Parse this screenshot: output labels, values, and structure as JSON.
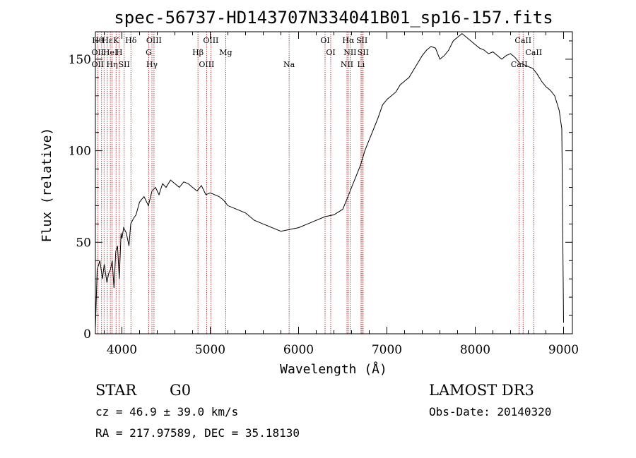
{
  "chart_data": {
    "type": "line",
    "title": "spec-56737-HD143707N334041B01_sp16-157.fits",
    "xlabel": "Wavelength (Å)",
    "ylabel": "Flux (relative)",
    "xlim": [
      3700,
      9100
    ],
    "ylim": [
      0,
      165
    ],
    "xticks": [
      4000,
      5000,
      6000,
      7000,
      8000,
      9000
    ],
    "yticks": [
      0,
      50,
      100,
      150
    ],
    "grid": false,
    "line_color": "#000000",
    "marker_color": "#aa1111",
    "series": [
      {
        "x": [
          3700,
          3720,
          3750,
          3780,
          3800,
          3830,
          3850,
          3870,
          3890,
          3910,
          3930,
          3950,
          3970,
          3990,
          4000,
          4020,
          4050,
          4080,
          4100,
          4130,
          4160,
          4200,
          4250,
          4300,
          4340,
          4380,
          4420,
          4460,
          4500,
          4550,
          4600,
          4650,
          4700,
          4750,
          4800,
          4850,
          4900,
          4950,
          5000,
          5050,
          5100,
          5150,
          5200,
          5300,
          5400,
          5500,
          5600,
          5700,
          5800,
          5900,
          6000,
          6100,
          6200,
          6300,
          6400,
          6500,
          6560,
          6600,
          6650,
          6700,
          6750,
          6800,
          6850,
          6900,
          6950,
          7000,
          7050,
          7100,
          7150,
          7200,
          7250,
          7300,
          7350,
          7400,
          7450,
          7500,
          7550,
          7600,
          7650,
          7700,
          7750,
          7800,
          7850,
          7900,
          7950,
          8000,
          8050,
          8100,
          8150,
          8200,
          8250,
          8300,
          8350,
          8400,
          8450,
          8500,
          8550,
          8600,
          8650,
          8700,
          8750,
          8800,
          8850,
          8900,
          8950,
          8980,
          9000
        ],
        "y": [
          3,
          35,
          40,
          30,
          38,
          28,
          33,
          35,
          40,
          25,
          45,
          48,
          30,
          55,
          52,
          58,
          55,
          48,
          60,
          63,
          65,
          72,
          75,
          70,
          78,
          80,
          76,
          82,
          80,
          84,
          82,
          80,
          83,
          82,
          80,
          78,
          81,
          76,
          77,
          76,
          75,
          73,
          70,
          68,
          66,
          62,
          60,
          58,
          56,
          57,
          58,
          60,
          62,
          64,
          65,
          68,
          75,
          80,
          86,
          92,
          100,
          106,
          112,
          118,
          125,
          128,
          130,
          132,
          136,
          138,
          140,
          144,
          148,
          152,
          155,
          157,
          156,
          150,
          152,
          155,
          160,
          162,
          164,
          162,
          160,
          158,
          156,
          155,
          153,
          154,
          152,
          150,
          152,
          153,
          151,
          148,
          147,
          146,
          145,
          142,
          138,
          135,
          133,
          130,
          122,
          112,
          6
        ]
      }
    ],
    "line_markers": [
      {
        "x": 3727,
        "labels": [
          "Hθ",
          "OII",
          "OII"
        ]
      },
      {
        "x": 3770,
        "labels": []
      },
      {
        "x": 3798,
        "labels": []
      },
      {
        "x": 3835,
        "labels": [
          "Hε"
        ]
      },
      {
        "x": 3869,
        "labels": [
          "HeI"
        ]
      },
      {
        "x": 3889,
        "labels": [
          "Hη"
        ]
      },
      {
        "x": 3934,
        "labels": [
          "K"
        ]
      },
      {
        "x": 3969,
        "labels": [
          "H"
        ]
      },
      {
        "x": 4026,
        "labels": [
          "SII"
        ]
      },
      {
        "x": 4102,
        "labels": [
          "Hδ"
        ]
      },
      {
        "x": 4304,
        "labels": [
          "G"
        ]
      },
      {
        "x": 4340,
        "labels": [
          "Hγ"
        ]
      },
      {
        "x": 4363,
        "labels": [
          "OIII"
        ]
      },
      {
        "x": 4861,
        "labels": [
          "Hβ"
        ]
      },
      {
        "x": 4959,
        "labels": [
          "OIII"
        ]
      },
      {
        "x": 5007,
        "labels": [
          "OIII"
        ]
      },
      {
        "x": 5175,
        "labels": [
          "Mg"
        ]
      },
      {
        "x": 5893,
        "labels": [
          "Na"
        ]
      },
      {
        "x": 6300,
        "labels": [
          "OI"
        ]
      },
      {
        "x": 6364,
        "labels": [
          "OI"
        ]
      },
      {
        "x": 6548,
        "labels": [
          "NII"
        ]
      },
      {
        "x": 6563,
        "labels": [
          "Hα"
        ]
      },
      {
        "x": 6583,
        "labels": [
          "NII"
        ]
      },
      {
        "x": 6707,
        "labels": [
          "Li"
        ]
      },
      {
        "x": 6717,
        "labels": [
          "SII"
        ]
      },
      {
        "x": 6731,
        "labels": [
          "SII"
        ]
      },
      {
        "x": 8498,
        "labels": [
          "CaII"
        ]
      },
      {
        "x": 8542,
        "labels": [
          "CaII"
        ]
      },
      {
        "x": 8662,
        "labels": [
          "CaII"
        ]
      }
    ]
  },
  "info": {
    "class": "STAR",
    "subclass": "G0",
    "cz": "cz = 46.9 ± 39.0 km/s",
    "radec": "RA = 217.97589, DEC =  35.18130",
    "survey": "LAMOST DR3",
    "obsdate": "Obs-Date: 20140320"
  }
}
